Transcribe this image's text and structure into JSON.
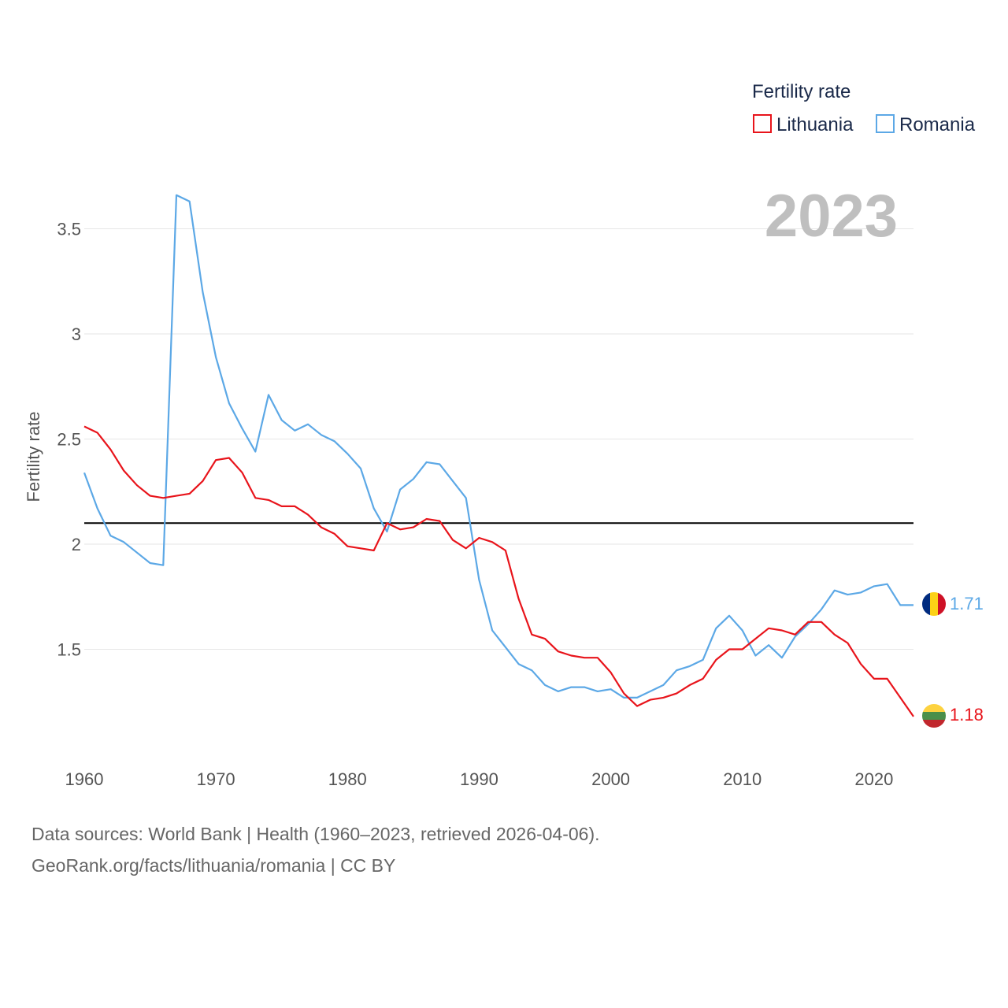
{
  "chart_data": {
    "type": "line",
    "title": "",
    "year_display": "2023",
    "xlabel": "",
    "ylabel": "Fertility rate",
    "xlim": [
      1960,
      2023
    ],
    "ylim": [
      1.0,
      3.7
    ],
    "x_ticks": [
      1960,
      1970,
      1980,
      1990,
      2000,
      2010,
      2020
    ],
    "y_ticks": [
      {
        "value": 1.5,
        "label": "1.5"
      },
      {
        "value": 2.0,
        "label": "2"
      },
      {
        "value": 2.5,
        "label": "2.5"
      },
      {
        "value": 3.0,
        "label": "3"
      },
      {
        "value": 3.5,
        "label": "3.5"
      }
    ],
    "reference_line": 2.1,
    "legend": {
      "title": "Fertility rate",
      "position": "top-right"
    },
    "x": [
      1960,
      1961,
      1962,
      1963,
      1964,
      1965,
      1966,
      1967,
      1968,
      1969,
      1970,
      1971,
      1972,
      1973,
      1974,
      1975,
      1976,
      1977,
      1978,
      1979,
      1980,
      1981,
      1982,
      1983,
      1984,
      1985,
      1986,
      1987,
      1988,
      1989,
      1990,
      1991,
      1992,
      1993,
      1994,
      1995,
      1996,
      1997,
      1998,
      1999,
      2000,
      2001,
      2002,
      2003,
      2004,
      2005,
      2006,
      2007,
      2008,
      2009,
      2010,
      2011,
      2012,
      2013,
      2014,
      2015,
      2016,
      2017,
      2018,
      2019,
      2020,
      2021,
      2022,
      2023
    ],
    "series": [
      {
        "name": "Lithuania",
        "color": "#e8141b",
        "end_label": "1.18",
        "values": [
          2.56,
          2.53,
          2.45,
          2.35,
          2.28,
          2.23,
          2.22,
          2.23,
          2.24,
          2.3,
          2.4,
          2.41,
          2.34,
          2.22,
          2.21,
          2.18,
          2.18,
          2.14,
          2.08,
          2.05,
          1.99,
          1.98,
          1.97,
          2.1,
          2.07,
          2.08,
          2.12,
          2.11,
          2.02,
          1.98,
          2.03,
          2.01,
          1.97,
          1.74,
          1.57,
          1.55,
          1.49,
          1.47,
          1.46,
          1.46,
          1.39,
          1.29,
          1.23,
          1.26,
          1.27,
          1.29,
          1.33,
          1.36,
          1.45,
          1.5,
          1.5,
          1.55,
          1.6,
          1.59,
          1.57,
          1.63,
          1.63,
          1.57,
          1.53,
          1.43,
          1.36,
          1.36,
          1.27,
          1.18
        ]
      },
      {
        "name": "Romania",
        "color": "#5ca8e6",
        "end_label": "1.71",
        "values": [
          2.34,
          2.17,
          2.04,
          2.01,
          1.96,
          1.91,
          1.9,
          3.66,
          3.63,
          3.2,
          2.89,
          2.67,
          2.55,
          2.44,
          2.71,
          2.59,
          2.54,
          2.57,
          2.52,
          2.49,
          2.43,
          2.36,
          2.17,
          2.06,
          2.26,
          2.31,
          2.39,
          2.38,
          2.3,
          2.22,
          1.83,
          1.59,
          1.51,
          1.43,
          1.4,
          1.33,
          1.3,
          1.32,
          1.32,
          1.3,
          1.31,
          1.27,
          1.27,
          1.3,
          1.33,
          1.4,
          1.42,
          1.45,
          1.6,
          1.66,
          1.59,
          1.47,
          1.52,
          1.46,
          1.56,
          1.62,
          1.69,
          1.78,
          1.76,
          1.77,
          1.8,
          1.81,
          1.71,
          1.71
        ]
      }
    ]
  },
  "footer": {
    "line1": "Data sources: World Bank | Health (1960–2023, retrieved 2026-04-06).",
    "line2": "GeoRank.org/facts/lithuania/romania | CC BY"
  }
}
